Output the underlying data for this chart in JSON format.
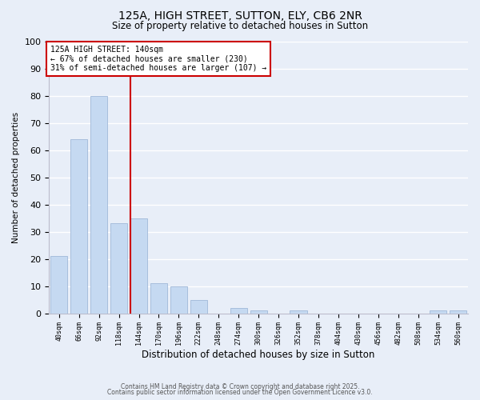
{
  "title": "125A, HIGH STREET, SUTTON, ELY, CB6 2NR",
  "subtitle": "Size of property relative to detached houses in Sutton",
  "xlabel": "Distribution of detached houses by size in Sutton",
  "ylabel": "Number of detached properties",
  "bar_labels": [
    "40sqm",
    "66sqm",
    "92sqm",
    "118sqm",
    "144sqm",
    "170sqm",
    "196sqm",
    "222sqm",
    "248sqm",
    "274sqm",
    "300sqm",
    "326sqm",
    "352sqm",
    "378sqm",
    "404sqm",
    "430sqm",
    "456sqm",
    "482sqm",
    "508sqm",
    "534sqm",
    "560sqm"
  ],
  "bar_values": [
    21,
    64,
    80,
    33,
    35,
    11,
    10,
    5,
    0,
    2,
    1,
    0,
    1,
    0,
    0,
    0,
    0,
    0,
    0,
    1,
    1
  ],
  "bar_color": "#c5d9f1",
  "bar_edge_color": "#a0b8d8",
  "vline_bar_index": 4,
  "vline_color": "#cc0000",
  "annotation_line1": "125A HIGH STREET: 140sqm",
  "annotation_line2": "← 67% of detached houses are smaller (230)",
  "annotation_line3": "31% of semi-detached houses are larger (107) →",
  "annotation_box_color": "#ffffff",
  "annotation_box_edge": "#cc0000",
  "ylim": [
    0,
    100
  ],
  "yticks": [
    0,
    10,
    20,
    30,
    40,
    50,
    60,
    70,
    80,
    90,
    100
  ],
  "background_color": "#e8eef8",
  "grid_color": "#ffffff",
  "footer_line1": "Contains HM Land Registry data © Crown copyright and database right 2025.",
  "footer_line2": "Contains public sector information licensed under the Open Government Licence v3.0."
}
